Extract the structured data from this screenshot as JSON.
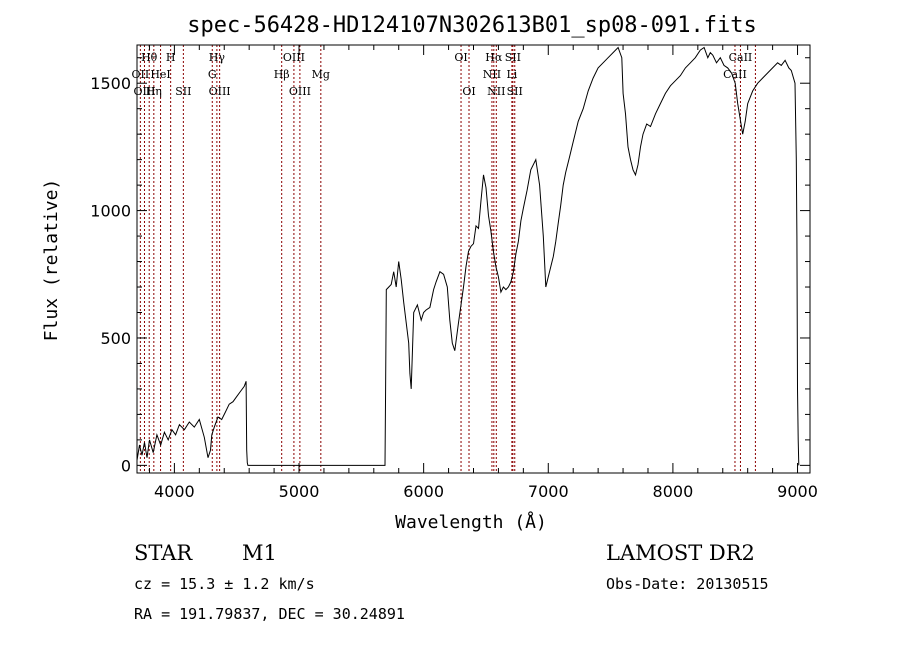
{
  "chart_data": {
    "type": "line",
    "title": "spec-56428-HD124107N302613B01_sp08-091.fits",
    "xlabel": "Wavelength (Å)",
    "ylabel": "Flux (relative)",
    "xlim": [
      3700,
      9100
    ],
    "ylim": [
      -30,
      1650
    ],
    "x_ticks": [
      4000,
      5000,
      6000,
      7000,
      8000,
      9000
    ],
    "x_tick_labels": [
      "4000",
      "5000",
      "6000",
      "7000",
      "8000",
      "9000"
    ],
    "y_ticks": [
      0,
      500,
      1000,
      1500
    ],
    "y_tick_labels": [
      "0",
      "500",
      "1000",
      "1500"
    ],
    "grid": false,
    "series": [
      {
        "x": [
          3700,
          3720,
          3740,
          3760,
          3780,
          3800,
          3830,
          3860,
          3890,
          3920,
          3950,
          3980,
          4010,
          4040,
          4080,
          4120,
          4160,
          4200,
          4240,
          4270,
          4290,
          4300,
          4320,
          4350,
          4380,
          4410,
          4440,
          4470,
          4500,
          4530,
          4560,
          4575,
          4580,
          4585,
          4590,
          4600,
          5000,
          5500,
          5690,
          5695,
          5700,
          5720,
          5740,
          5760,
          5780,
          5800,
          5820,
          5840,
          5860,
          5880,
          5890,
          5900,
          5920,
          5950,
          5980,
          6000,
          6020,
          6050,
          6080,
          6100,
          6130,
          6160,
          6190,
          6210,
          6230,
          6250,
          6280,
          6320,
          6340,
          6360,
          6380,
          6400,
          6420,
          6440,
          6460,
          6480,
          6500,
          6520,
          6540,
          6560,
          6580,
          6600,
          6620,
          6640,
          6660,
          6680,
          6700,
          6720,
          6740,
          6760,
          6780,
          6800,
          6830,
          6860,
          6900,
          6930,
          6960,
          6980,
          7000,
          7020,
          7040,
          7060,
          7080,
          7100,
          7120,
          7140,
          7170,
          7200,
          7240,
          7280,
          7320,
          7360,
          7400,
          7440,
          7480,
          7520,
          7560,
          7590,
          7600,
          7620,
          7640,
          7660,
          7680,
          7700,
          7720,
          7740,
          7760,
          7790,
          7820,
          7860,
          7900,
          7940,
          7980,
          8020,
          8060,
          8100,
          8140,
          8180,
          8220,
          8250,
          8280,
          8300,
          8320,
          8350,
          8380,
          8410,
          8440,
          8470,
          8500,
          8520,
          8540,
          8560,
          8580,
          8600,
          8640,
          8680,
          8720,
          8760,
          8800,
          8840,
          8870,
          8900,
          8930,
          8950,
          8980,
          8990,
          8995,
          9000,
          9005,
          9010
        ],
        "y": [
          20,
          80,
          40,
          90,
          30,
          100,
          50,
          120,
          80,
          130,
          100,
          140,
          120,
          160,
          140,
          170,
          150,
          180,
          110,
          30,
          60,
          120,
          150,
          190,
          180,
          210,
          240,
          250,
          270,
          290,
          310,
          330,
          60,
          10,
          0,
          0,
          0,
          0,
          0,
          300,
          690,
          700,
          710,
          760,
          700,
          800,
          730,
          640,
          560,
          480,
          360,
          300,
          600,
          630,
          570,
          600,
          610,
          620,
          690,
          720,
          760,
          750,
          700,
          570,
          480,
          450,
          560,
          700,
          780,
          840,
          860,
          870,
          940,
          930,
          1040,
          1140,
          1090,
          980,
          920,
          840,
          780,
          740,
          680,
          700,
          690,
          700,
          720,
          760,
          830,
          880,
          960,
          1010,
          1080,
          1160,
          1200,
          1100,
          900,
          700,
          740,
          780,
          820,
          880,
          950,
          1020,
          1100,
          1150,
          1210,
          1270,
          1350,
          1400,
          1470,
          1520,
          1560,
          1580,
          1600,
          1620,
          1640,
          1600,
          1460,
          1380,
          1250,
          1200,
          1160,
          1140,
          1180,
          1250,
          1300,
          1340,
          1330,
          1380,
          1420,
          1460,
          1490,
          1510,
          1530,
          1560,
          1580,
          1600,
          1630,
          1640,
          1600,
          1620,
          1610,
          1580,
          1600,
          1570,
          1560,
          1540,
          1500,
          1420,
          1360,
          1300,
          1350,
          1420,
          1470,
          1500,
          1520,
          1540,
          1560,
          1580,
          1570,
          1590,
          1560,
          1550,
          1500,
          1200,
          900,
          300,
          100,
          0
        ]
      }
    ],
    "spectral_lines": [
      {
        "label": "Hθ",
        "wavelength": 3798,
        "row": 1
      },
      {
        "label": "OII",
        "wavelength": 3727,
        "row": 2
      },
      {
        "label": "Hη",
        "wavelength": 3835,
        "row": 3
      },
      {
        "label": "OIII",
        "wavelength": 3760,
        "row": 3
      },
      {
        "label": "HeI",
        "wavelength": 3889,
        "row": 2
      },
      {
        "label": "H",
        "wavelength": 3970,
        "row": 1
      },
      {
        "label": "SII",
        "wavelength": 4072,
        "row": 3
      },
      {
        "label": "Hγ",
        "wavelength": 4341,
        "row": 1
      },
      {
        "label": "G",
        "wavelength": 4304,
        "row": 2
      },
      {
        "label": "OIII",
        "wavelength": 4363,
        "row": 3
      },
      {
        "label": "OIII",
        "wavelength": 4959,
        "row": 1
      },
      {
        "label": "Hβ",
        "wavelength": 4861,
        "row": 2
      },
      {
        "label": "OIII",
        "wavelength": 5007,
        "row": 3
      },
      {
        "label": "Mg",
        "wavelength": 5175,
        "row": 2
      },
      {
        "label": "OI",
        "wavelength": 6300,
        "row": 1
      },
      {
        "label": "OI",
        "wavelength": 6364,
        "row": 3
      },
      {
        "label": "Hα",
        "wavelength": 6563,
        "row": 1
      },
      {
        "label": "NII",
        "wavelength": 6548,
        "row": 2
      },
      {
        "label": "NII",
        "wavelength": 6583,
        "row": 3
      },
      {
        "label": "SII",
        "wavelength": 6716,
        "row": 1
      },
      {
        "label": "Li",
        "wavelength": 6708,
        "row": 2
      },
      {
        "label": "SII",
        "wavelength": 6731,
        "row": 3
      },
      {
        "label": "CaII",
        "wavelength": 8542,
        "row": 1
      },
      {
        "label": "CaII",
        "wavelength": 8498,
        "row": 2
      },
      {
        "label": "",
        "wavelength": 8662,
        "row": 0
      }
    ]
  },
  "info": {
    "class": "STAR",
    "subclass": "M1",
    "survey": "LAMOST DR2",
    "cz": "cz = 15.3 ± 1.2 km/s",
    "obs_date": "Obs-Date: 20130515",
    "radec": "RA = 191.79837, DEC =  30.24891"
  },
  "colors": {
    "spectrum": "#000000",
    "line_marker": "#8b0000",
    "axes": "#000000",
    "background": "#ffffff"
  }
}
